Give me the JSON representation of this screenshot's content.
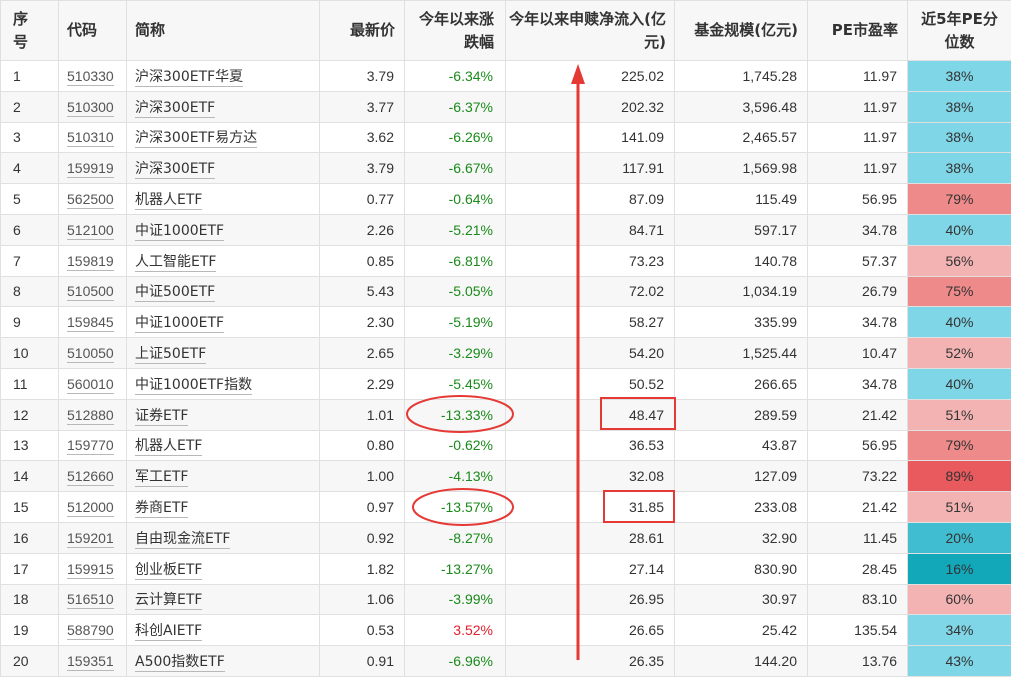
{
  "headers": {
    "seq": "序号",
    "code": "代码",
    "name": "简称",
    "price": "最新价",
    "ytd_change": "今年以来涨跌幅",
    "ytd_flow": "今年以来申赎净流入(亿元)",
    "fund_size": "基金规模(亿元)",
    "pe": "PE市盈率",
    "pe_pct": "近5年PE分位数"
  },
  "colors": {
    "negative": "#1a8a1a",
    "positive": "#e0202e",
    "annotation": "#e53935",
    "pct_cyan_light": "#7fd6e6",
    "pct_cyan_mid": "#40bdd0",
    "pct_cyan_dark": "#12a8ba",
    "pct_red_light": "#f4b3b3",
    "pct_red_mid": "#ef8a8a",
    "pct_red_dark": "#e85a5e"
  },
  "rows": [
    {
      "seq": "1",
      "code": "510330",
      "name": "沪深300ETF华夏",
      "price": "3.79",
      "change": "-6.34%",
      "flow": "225.02",
      "size": "1,745.28",
      "pe": "11.97",
      "pct": "38%"
    },
    {
      "seq": "2",
      "code": "510300",
      "name": "沪深300ETF",
      "price": "3.77",
      "change": "-6.37%",
      "flow": "202.32",
      "size": "3,596.48",
      "pe": "11.97",
      "pct": "38%"
    },
    {
      "seq": "3",
      "code": "510310",
      "name": "沪深300ETF易方达",
      "price": "3.62",
      "change": "-6.26%",
      "flow": "141.09",
      "size": "2,465.57",
      "pe": "11.97",
      "pct": "38%"
    },
    {
      "seq": "4",
      "code": "159919",
      "name": "沪深300ETF",
      "price": "3.79",
      "change": "-6.67%",
      "flow": "117.91",
      "size": "1,569.98",
      "pe": "11.97",
      "pct": "38%"
    },
    {
      "seq": "5",
      "code": "562500",
      "name": "机器人ETF",
      "price": "0.77",
      "change": "-0.64%",
      "flow": "87.09",
      "size": "115.49",
      "pe": "56.95",
      "pct": "79%"
    },
    {
      "seq": "6",
      "code": "512100",
      "name": "中证1000ETF",
      "price": "2.26",
      "change": "-5.21%",
      "flow": "84.71",
      "size": "597.17",
      "pe": "34.78",
      "pct": "40%"
    },
    {
      "seq": "7",
      "code": "159819",
      "name": "人工智能ETF",
      "price": "0.85",
      "change": "-6.81%",
      "flow": "73.23",
      "size": "140.78",
      "pe": "57.37",
      "pct": "56%"
    },
    {
      "seq": "8",
      "code": "510500",
      "name": "中证500ETF",
      "price": "5.43",
      "change": "-5.05%",
      "flow": "72.02",
      "size": "1,034.19",
      "pe": "26.79",
      "pct": "75%"
    },
    {
      "seq": "9",
      "code": "159845",
      "name": "中证1000ETF",
      "price": "2.30",
      "change": "-5.19%",
      "flow": "58.27",
      "size": "335.99",
      "pe": "34.78",
      "pct": "40%"
    },
    {
      "seq": "10",
      "code": "510050",
      "name": "上证50ETF",
      "price": "2.65",
      "change": "-3.29%",
      "flow": "54.20",
      "size": "1,525.44",
      "pe": "10.47",
      "pct": "52%"
    },
    {
      "seq": "11",
      "code": "560010",
      "name": "中证1000ETF指数",
      "price": "2.29",
      "change": "-5.45%",
      "flow": "50.52",
      "size": "266.65",
      "pe": "34.78",
      "pct": "40%"
    },
    {
      "seq": "12",
      "code": "512880",
      "name": "证券ETF",
      "price": "1.01",
      "change": "-13.33%",
      "flow": "48.47",
      "size": "289.59",
      "pe": "21.42",
      "pct": "51%"
    },
    {
      "seq": "13",
      "code": "159770",
      "name": "机器人ETF",
      "price": "0.80",
      "change": "-0.62%",
      "flow": "36.53",
      "size": "43.87",
      "pe": "56.95",
      "pct": "79%"
    },
    {
      "seq": "14",
      "code": "512660",
      "name": "军工ETF",
      "price": "1.00",
      "change": "-4.13%",
      "flow": "32.08",
      "size": "127.09",
      "pe": "73.22",
      "pct": "89%"
    },
    {
      "seq": "15",
      "code": "512000",
      "name": "券商ETF",
      "price": "0.97",
      "change": "-13.57%",
      "flow": "31.85",
      "size": "233.08",
      "pe": "21.42",
      "pct": "51%"
    },
    {
      "seq": "16",
      "code": "159201",
      "name": "自由现金流ETF",
      "price": "0.92",
      "change": "-8.27%",
      "flow": "28.61",
      "size": "32.90",
      "pe": "11.45",
      "pct": "20%"
    },
    {
      "seq": "17",
      "code": "159915",
      "name": "创业板ETF",
      "price": "1.82",
      "change": "-13.27%",
      "flow": "27.14",
      "size": "830.90",
      "pe": "28.45",
      "pct": "16%"
    },
    {
      "seq": "18",
      "code": "516510",
      "name": "云计算ETF",
      "price": "1.06",
      "change": "-3.99%",
      "flow": "26.95",
      "size": "30.97",
      "pe": "83.10",
      "pct": "60%"
    },
    {
      "seq": "19",
      "code": "588790",
      "name": "科创AIETF",
      "price": "0.53",
      "change": "3.52%",
      "flow": "26.65",
      "size": "25.42",
      "pe": "135.54",
      "pct": "34%"
    },
    {
      "seq": "20",
      "code": "159351",
      "name": "A500指数ETF",
      "price": "0.91",
      "change": "-6.96%",
      "flow": "26.35",
      "size": "144.20",
      "pe": "13.76",
      "pct": "43%"
    }
  ]
}
